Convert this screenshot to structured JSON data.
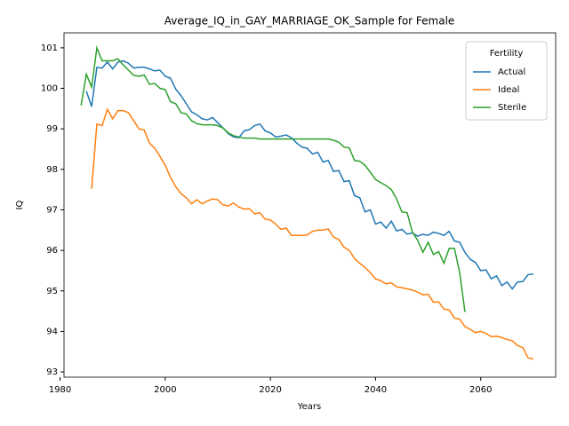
{
  "chart_data": {
    "type": "line",
    "title": "Average_IQ_in_GAY_MARRIAGE_OK_Sample for Female",
    "xlabel": "Years",
    "ylabel": "IQ",
    "legend_title": "Fertility",
    "legend_loc": "upper right",
    "x": [
      1984,
      1985,
      1986,
      1987,
      1988,
      1989,
      1990,
      1991,
      1992,
      1993,
      1994,
      1995,
      1996,
      1997,
      1998,
      1999,
      2000,
      2001,
      2002,
      2003,
      2004,
      2005,
      2006,
      2007,
      2008,
      2009,
      2010,
      2011,
      2012,
      2013,
      2014,
      2015,
      2016,
      2017,
      2018,
      2019,
      2020,
      2021,
      2022,
      2023,
      2024,
      2025,
      2026,
      2027,
      2028,
      2029,
      2030,
      2031,
      2032,
      2033,
      2034,
      2035,
      2036,
      2037,
      2038,
      2039,
      2040,
      2041,
      2042,
      2043,
      2044,
      2045,
      2046,
      2047,
      2048,
      2049,
      2050,
      2051,
      2052,
      2053,
      2054,
      2055,
      2056,
      2057,
      2058,
      2059,
      2060,
      2061,
      2062,
      2063,
      2064,
      2065,
      2066,
      2067,
      2068,
      2069,
      2070
    ],
    "series": [
      {
        "name": "Actual",
        "color": "#1f77b4",
        "values": [
          null,
          99.93,
          99.55,
          100.52,
          100.5,
          100.65,
          100.48,
          100.65,
          100.68,
          100.62,
          100.5,
          100.52,
          100.52,
          100.48,
          100.43,
          100.45,
          100.3,
          100.25,
          99.98,
          99.82,
          99.62,
          99.42,
          99.35,
          99.25,
          99.22,
          99.28,
          99.15,
          99.02,
          98.88,
          98.8,
          98.78,
          98.95,
          98.98,
          99.08,
          99.12,
          98.95,
          98.9,
          98.8,
          98.82,
          98.85,
          98.78,
          98.65,
          98.55,
          98.52,
          98.38,
          98.42,
          98.18,
          98.22,
          97.95,
          97.97,
          97.7,
          97.72,
          97.35,
          97.3,
          96.95,
          97.0,
          96.65,
          96.7,
          96.55,
          96.72,
          96.48,
          96.52,
          96.4,
          96.43,
          96.35,
          96.4,
          96.37,
          96.45,
          96.42,
          96.37,
          96.47,
          96.23,
          96.2,
          95.95,
          95.78,
          95.7,
          95.5,
          95.52,
          95.3,
          95.37,
          95.13,
          95.22,
          95.05,
          95.22,
          95.23,
          95.4,
          95.42
        ]
      },
      {
        "name": "Ideal",
        "color": "#ff7f0e",
        "values": [
          null,
          null,
          97.52,
          99.12,
          99.08,
          99.48,
          99.25,
          99.45,
          99.45,
          99.4,
          99.2,
          99.0,
          98.97,
          98.65,
          98.52,
          98.32,
          98.1,
          97.8,
          97.57,
          97.4,
          97.3,
          97.15,
          97.25,
          97.15,
          97.22,
          97.27,
          97.25,
          97.12,
          97.1,
          97.17,
          97.07,
          97.02,
          97.03,
          96.9,
          96.93,
          96.77,
          96.75,
          96.65,
          96.52,
          96.55,
          96.37,
          96.37,
          96.37,
          96.38,
          96.47,
          96.5,
          96.5,
          96.53,
          96.33,
          96.27,
          96.08,
          96.0,
          95.8,
          95.68,
          95.58,
          95.45,
          95.3,
          95.25,
          95.17,
          95.2,
          95.1,
          95.08,
          95.05,
          95.02,
          94.97,
          94.9,
          94.92,
          94.72,
          94.73,
          94.55,
          94.53,
          94.33,
          94.3,
          94.12,
          94.05,
          93.97,
          94.0,
          93.95,
          93.87,
          93.88,
          93.85,
          93.8,
          93.77,
          93.65,
          93.6,
          93.35,
          93.32
        ]
      },
      {
        "name": "Sterile",
        "color": "#2ca02c",
        "values": [
          99.58,
          100.35,
          100.03,
          101.0,
          100.68,
          100.68,
          100.68,
          100.73,
          100.58,
          100.45,
          100.32,
          100.3,
          100.33,
          100.1,
          100.12,
          100.0,
          99.97,
          99.67,
          99.62,
          99.4,
          99.37,
          99.2,
          99.13,
          99.1,
          99.1,
          99.1,
          99.08,
          99.02,
          98.9,
          98.83,
          98.8,
          98.77,
          98.77,
          98.77,
          98.75,
          98.75,
          98.75,
          98.75,
          98.75,
          98.75,
          98.75,
          98.75,
          98.75,
          98.75,
          98.75,
          98.75,
          98.75,
          98.75,
          98.72,
          98.67,
          98.55,
          98.53,
          98.22,
          98.2,
          98.1,
          97.93,
          97.75,
          97.67,
          97.6,
          97.5,
          97.27,
          96.95,
          96.93,
          96.45,
          96.25,
          95.95,
          96.2,
          95.9,
          95.97,
          95.68,
          96.05,
          96.05,
          95.45,
          94.48,
          null,
          null,
          null,
          null,
          null,
          null,
          null,
          null,
          null,
          null,
          null,
          null,
          null
        ]
      }
    ],
    "xlim": [
      1980.75,
      2074.25
    ],
    "xticks": [
      1980,
      2000,
      2020,
      2040,
      2060
    ],
    "ylim": [
      92.87,
      101.37
    ],
    "yticks": [
      93,
      94,
      95,
      96,
      97,
      98,
      99,
      100,
      101
    ]
  }
}
